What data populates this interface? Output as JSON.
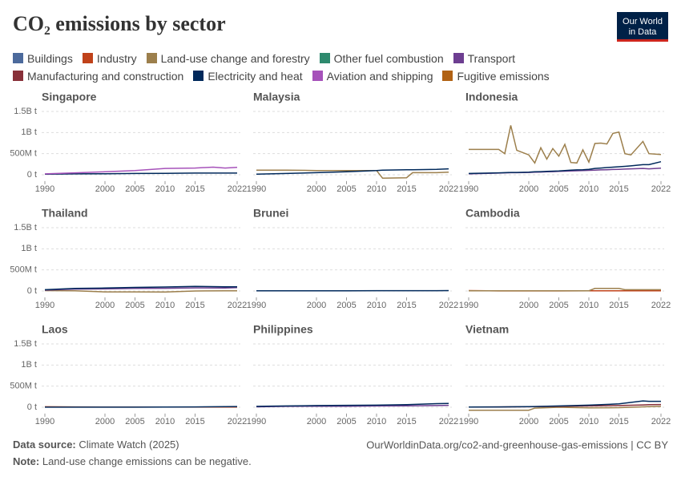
{
  "title": "CO₂ emissions by sector",
  "logo": [
    "Our World",
    "in Data"
  ],
  "legend": [
    {
      "name": "Buildings",
      "color": "#4c6a9c"
    },
    {
      "name": "Industry",
      "color": "#c0421a"
    },
    {
      "name": "Land-use change and forestry",
      "color": "#9c7f4c"
    },
    {
      "name": "Other fuel combustion",
      "color": "#2e8a6e"
    },
    {
      "name": "Transport",
      "color": "#6d3e91"
    },
    {
      "name": "Manufacturing and construction",
      "color": "#883039"
    },
    {
      "name": "Electricity and heat",
      "color": "#00295b"
    },
    {
      "name": "Aviation and shipping",
      "color": "#a652ba"
    },
    {
      "name": "Fugitive emissions",
      "color": "#b16214"
    }
  ],
  "source_label": "Data source:",
  "source": "Climate Watch (2025)",
  "note_label": "Note:",
  "note": "Land-use change emissions can be negative.",
  "url": "OurWorldinData.org/co2-and-greenhouse-gas-emissions | CC BY",
  "chart_data": [
    {
      "type": "line",
      "title": "Singapore",
      "x": [
        1990,
        1995,
        2000,
        2005,
        2010,
        2015,
        2018,
        2020,
        2022
      ],
      "xlim": [
        1990,
        2022
      ],
      "xticks": [
        1990,
        2000,
        2005,
        2010,
        2015,
        2022
      ],
      "ylim": [
        -150000000,
        1500000000
      ],
      "yticks": [
        {
          "value": 0,
          "label": "0 t"
        },
        {
          "value": 500000000,
          "label": "500M t"
        },
        {
          "value": 1000000000,
          "label": "1B t"
        },
        {
          "value": 1500000000,
          "label": "1.5B t"
        }
      ],
      "series": [
        {
          "name": "Electricity and heat",
          "values": [
            15000000,
            20000000,
            25000000,
            30000000,
            35000000,
            40000000,
            40000000,
            40000000,
            40000000
          ]
        },
        {
          "name": "Aviation and shipping",
          "values": [
            20000000,
            45000000,
            70000000,
            100000000,
            150000000,
            160000000,
            180000000,
            160000000,
            175000000
          ]
        }
      ]
    },
    {
      "type": "line",
      "title": "Malaysia",
      "x": [
        1990,
        1995,
        2000,
        2005,
        2010,
        2011,
        2015,
        2016,
        2020,
        2022
      ],
      "xlim": [
        1990,
        2022
      ],
      "xticks": [
        1990,
        2000,
        2005,
        2010,
        2015,
        2022
      ],
      "ylim": [
        -150000000,
        1500000000
      ],
      "series": [
        {
          "name": "Land-use change and forestry",
          "values": [
            110000000,
            110000000,
            100000000,
            100000000,
            100000000,
            -80000000,
            -70000000,
            50000000,
            50000000,
            60000000
          ]
        },
        {
          "name": "Electricity and heat",
          "values": [
            15000000,
            30000000,
            50000000,
            70000000,
            100000000,
            110000000,
            120000000,
            120000000,
            130000000,
            140000000
          ]
        }
      ]
    },
    {
      "type": "line",
      "title": "Indonesia",
      "x": [
        1990,
        1995,
        1996,
        1997,
        1998,
        2000,
        2001,
        2002,
        2003,
        2004,
        2005,
        2006,
        2007,
        2008,
        2009,
        2010,
        2011,
        2012,
        2013,
        2014,
        2015,
        2016,
        2017,
        2019,
        2020,
        2022
      ],
      "xlim": [
        1990,
        2022
      ],
      "xticks": [
        1990,
        2000,
        2005,
        2010,
        2015,
        2022
      ],
      "ylim": [
        -150000000,
        1500000000
      ],
      "series": [
        {
          "name": "Land-use change and forestry",
          "values": [
            600000000,
            600000000,
            500000000,
            1170000000,
            580000000,
            470000000,
            280000000,
            640000000,
            370000000,
            620000000,
            440000000,
            720000000,
            290000000,
            280000000,
            590000000,
            300000000,
            740000000,
            750000000,
            730000000,
            980000000,
            1010000000,
            500000000,
            470000000,
            790000000,
            500000000,
            480000000
          ]
        },
        {
          "name": "Transport",
          "values": [
            20000000,
            40000000,
            45000000,
            50000000,
            50000000,
            55000000,
            60000000,
            65000000,
            70000000,
            75000000,
            80000000,
            85000000,
            90000000,
            95000000,
            100000000,
            105000000,
            110000000,
            115000000,
            120000000,
            125000000,
            130000000,
            135000000,
            140000000,
            150000000,
            140000000,
            155000000
          ]
        },
        {
          "name": "Electricity and heat",
          "values": [
            30000000,
            45000000,
            50000000,
            55000000,
            55000000,
            60000000,
            70000000,
            75000000,
            80000000,
            85000000,
            90000000,
            100000000,
            110000000,
            115000000,
            120000000,
            130000000,
            150000000,
            160000000,
            170000000,
            180000000,
            190000000,
            200000000,
            210000000,
            240000000,
            240000000,
            310000000
          ]
        }
      ]
    },
    {
      "type": "line",
      "title": "Thailand",
      "x": [
        1990,
        1995,
        2000,
        2005,
        2010,
        2015,
        2020,
        2022
      ],
      "xlim": [
        1990,
        2022
      ],
      "xticks": [
        1990,
        2000,
        2005,
        2010,
        2015,
        2022
      ],
      "ylim": [
        -150000000,
        1500000000
      ],
      "yticks": [
        {
          "value": 0,
          "label": "0 t"
        },
        {
          "value": 500000000,
          "label": "500M t"
        },
        {
          "value": 1000000000,
          "label": "1B t"
        },
        {
          "value": 1500000000,
          "label": "1.5B t"
        }
      ],
      "series": [
        {
          "name": "Land-use change and forestry",
          "values": [
            10000000,
            5000000,
            -20000000,
            -20000000,
            -25000000,
            0,
            5000000,
            5000000
          ]
        },
        {
          "name": "Transport",
          "values": [
            20000000,
            45000000,
            50000000,
            60000000,
            65000000,
            75000000,
            70000000,
            80000000
          ]
        },
        {
          "name": "Electricity and heat",
          "values": [
            30000000,
            60000000,
            70000000,
            85000000,
            95000000,
            110000000,
            100000000,
            100000000
          ]
        }
      ]
    },
    {
      "type": "line",
      "title": "Brunei",
      "x": [
        1990,
        1995,
        2000,
        2005,
        2010,
        2015,
        2020,
        2022
      ],
      "xlim": [
        1990,
        2022
      ],
      "xticks": [
        1990,
        2000,
        2005,
        2010,
        2015,
        2022
      ],
      "ylim": [
        -150000000,
        1500000000
      ],
      "series": [
        {
          "name": "Electricity and heat",
          "values": [
            3000000,
            4000000,
            5000000,
            6000000,
            7000000,
            8000000,
            8000000,
            9000000
          ]
        }
      ]
    },
    {
      "type": "line",
      "title": "Cambodia",
      "x": [
        1990,
        1995,
        2000,
        2005,
        2010,
        2011,
        2015,
        2016,
        2020,
        2022
      ],
      "xlim": [
        1990,
        2022
      ],
      "xticks": [
        1990,
        2000,
        2005,
        2010,
        2015,
        2022
      ],
      "ylim": [
        -150000000,
        1500000000
      ],
      "series": [
        {
          "name": "Industry",
          "values": [
            10000000,
            2000000,
            2000000,
            2000000,
            3000000,
            3000000,
            4000000,
            4000000,
            5000000,
            5000000
          ]
        },
        {
          "name": "Land-use change and forestry",
          "values": [
            5000000,
            5000000,
            5000000,
            5000000,
            5000000,
            60000000,
            60000000,
            30000000,
            30000000,
            30000000
          ]
        }
      ]
    },
    {
      "type": "line",
      "title": "Laos",
      "x": [
        1990,
        1995,
        2000,
        2005,
        2010,
        2015,
        2020,
        2022
      ],
      "xlim": [
        1990,
        2022
      ],
      "xticks": [
        1990,
        2000,
        2005,
        2010,
        2015,
        2022
      ],
      "ylim": [
        -150000000,
        1500000000
      ],
      "yticks": [
        {
          "value": 0,
          "label": "0 t"
        },
        {
          "value": 500000000,
          "label": "500M t"
        },
        {
          "value": 1000000000,
          "label": "1B t"
        },
        {
          "value": 1500000000,
          "label": "1.5B t"
        }
      ],
      "series": [
        {
          "name": "Industry",
          "values": [
            12000000,
            8000000,
            5000000,
            3000000,
            3000000,
            3000000,
            3000000,
            3000000
          ]
        },
        {
          "name": "Electricity and heat",
          "values": [
            1000000,
            1000000,
            1000000,
            2000000,
            3000000,
            8000000,
            15000000,
            18000000
          ]
        }
      ]
    },
    {
      "type": "line",
      "title": "Philippines",
      "x": [
        1990,
        1995,
        2000,
        2005,
        2010,
        2015,
        2020,
        2022
      ],
      "xlim": [
        1990,
        2022
      ],
      "xticks": [
        1990,
        2000,
        2005,
        2010,
        2015,
        2022
      ],
      "ylim": [
        -150000000,
        1500000000
      ],
      "series": [
        {
          "name": "Transport",
          "values": [
            10000000,
            20000000,
            25000000,
            25000000,
            30000000,
            35000000,
            40000000,
            45000000
          ]
        },
        {
          "name": "Electricity and heat",
          "values": [
            20000000,
            30000000,
            40000000,
            45000000,
            50000000,
            60000000,
            85000000,
            90000000
          ]
        }
      ]
    },
    {
      "type": "line",
      "title": "Vietnam",
      "x": [
        1990,
        1995,
        2000,
        2001,
        2005,
        2010,
        2015,
        2019,
        2020,
        2022
      ],
      "xlim": [
        1990,
        2022
      ],
      "xticks": [
        1990,
        2000,
        2005,
        2010,
        2015,
        2022
      ],
      "ylim": [
        -150000000,
        1500000000
      ],
      "series": [
        {
          "name": "Land-use change and forestry",
          "values": [
            -70000000,
            -70000000,
            -70000000,
            -20000000,
            0,
            -15000000,
            -10000000,
            10000000,
            15000000,
            20000000
          ]
        },
        {
          "name": "Manufacturing and construction",
          "values": [
            5000000,
            8000000,
            12000000,
            14000000,
            20000000,
            30000000,
            40000000,
            55000000,
            60000000,
            65000000
          ]
        },
        {
          "name": "Electricity and heat",
          "values": [
            5000000,
            8000000,
            15000000,
            18000000,
            30000000,
            50000000,
            80000000,
            150000000,
            140000000,
            140000000
          ]
        }
      ]
    }
  ]
}
